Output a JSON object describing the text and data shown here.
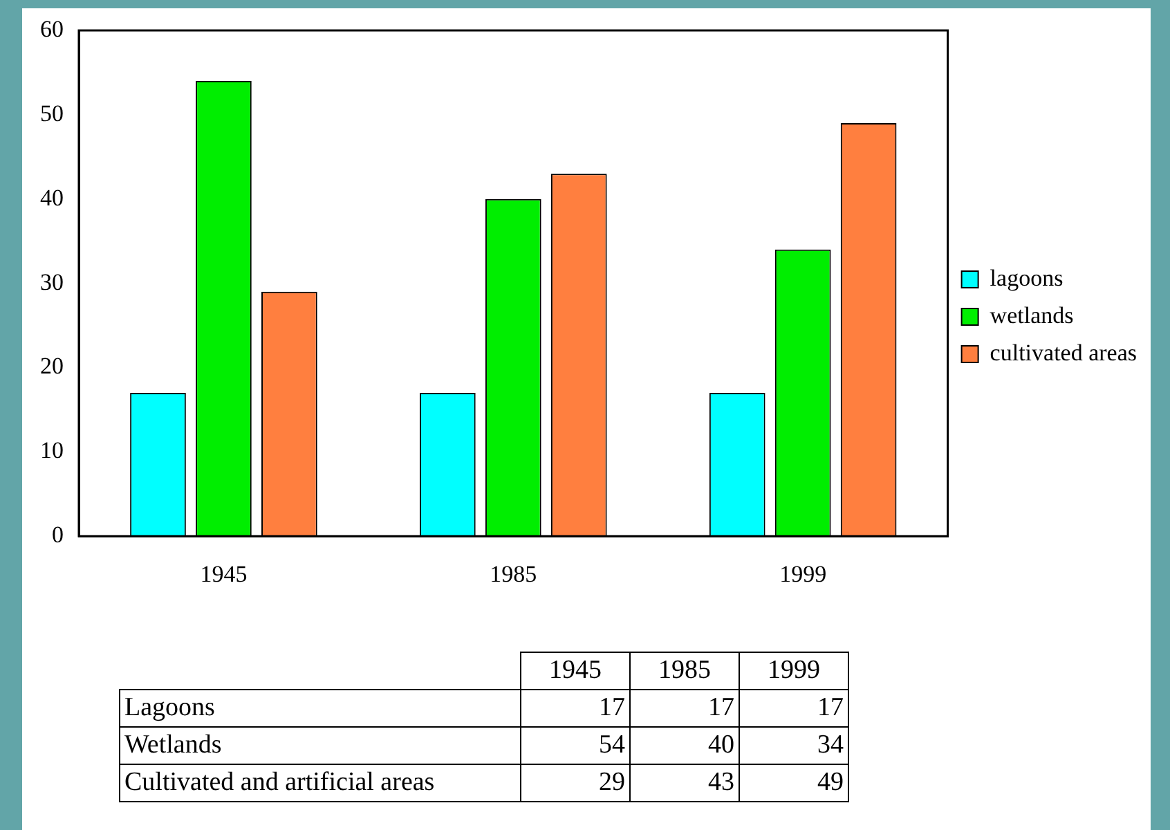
{
  "chart_data": [
    {
      "type": "bar",
      "categories": [
        "1945",
        "1985",
        "1999"
      ],
      "series": [
        {
          "name": "lagoons",
          "color": "#00ffff",
          "values": [
            17,
            17,
            17
          ]
        },
        {
          "name": "wetlands",
          "color": "#00ee00",
          "values": [
            54,
            40,
            34
          ]
        },
        {
          "name": "cultivated areas",
          "color": "#ff7f3f",
          "values": [
            29,
            43,
            49
          ]
        }
      ],
      "ylim": [
        0,
        60
      ],
      "yticks": [
        0,
        10,
        20,
        30,
        40,
        50,
        60
      ],
      "grid": false,
      "legend": "right"
    },
    {
      "type": "heatmap",
      "categories": [
        "1945",
        "1985",
        "1999"
      ],
      "y_categories": [
        "Lagoons",
        "Wetlands",
        "Cultivated and artificial areas"
      ],
      "cells": [
        [
          17,
          17,
          17
        ],
        [
          54,
          40,
          34
        ],
        [
          29,
          43,
          49
        ]
      ],
      "data_labels": true
    }
  ]
}
